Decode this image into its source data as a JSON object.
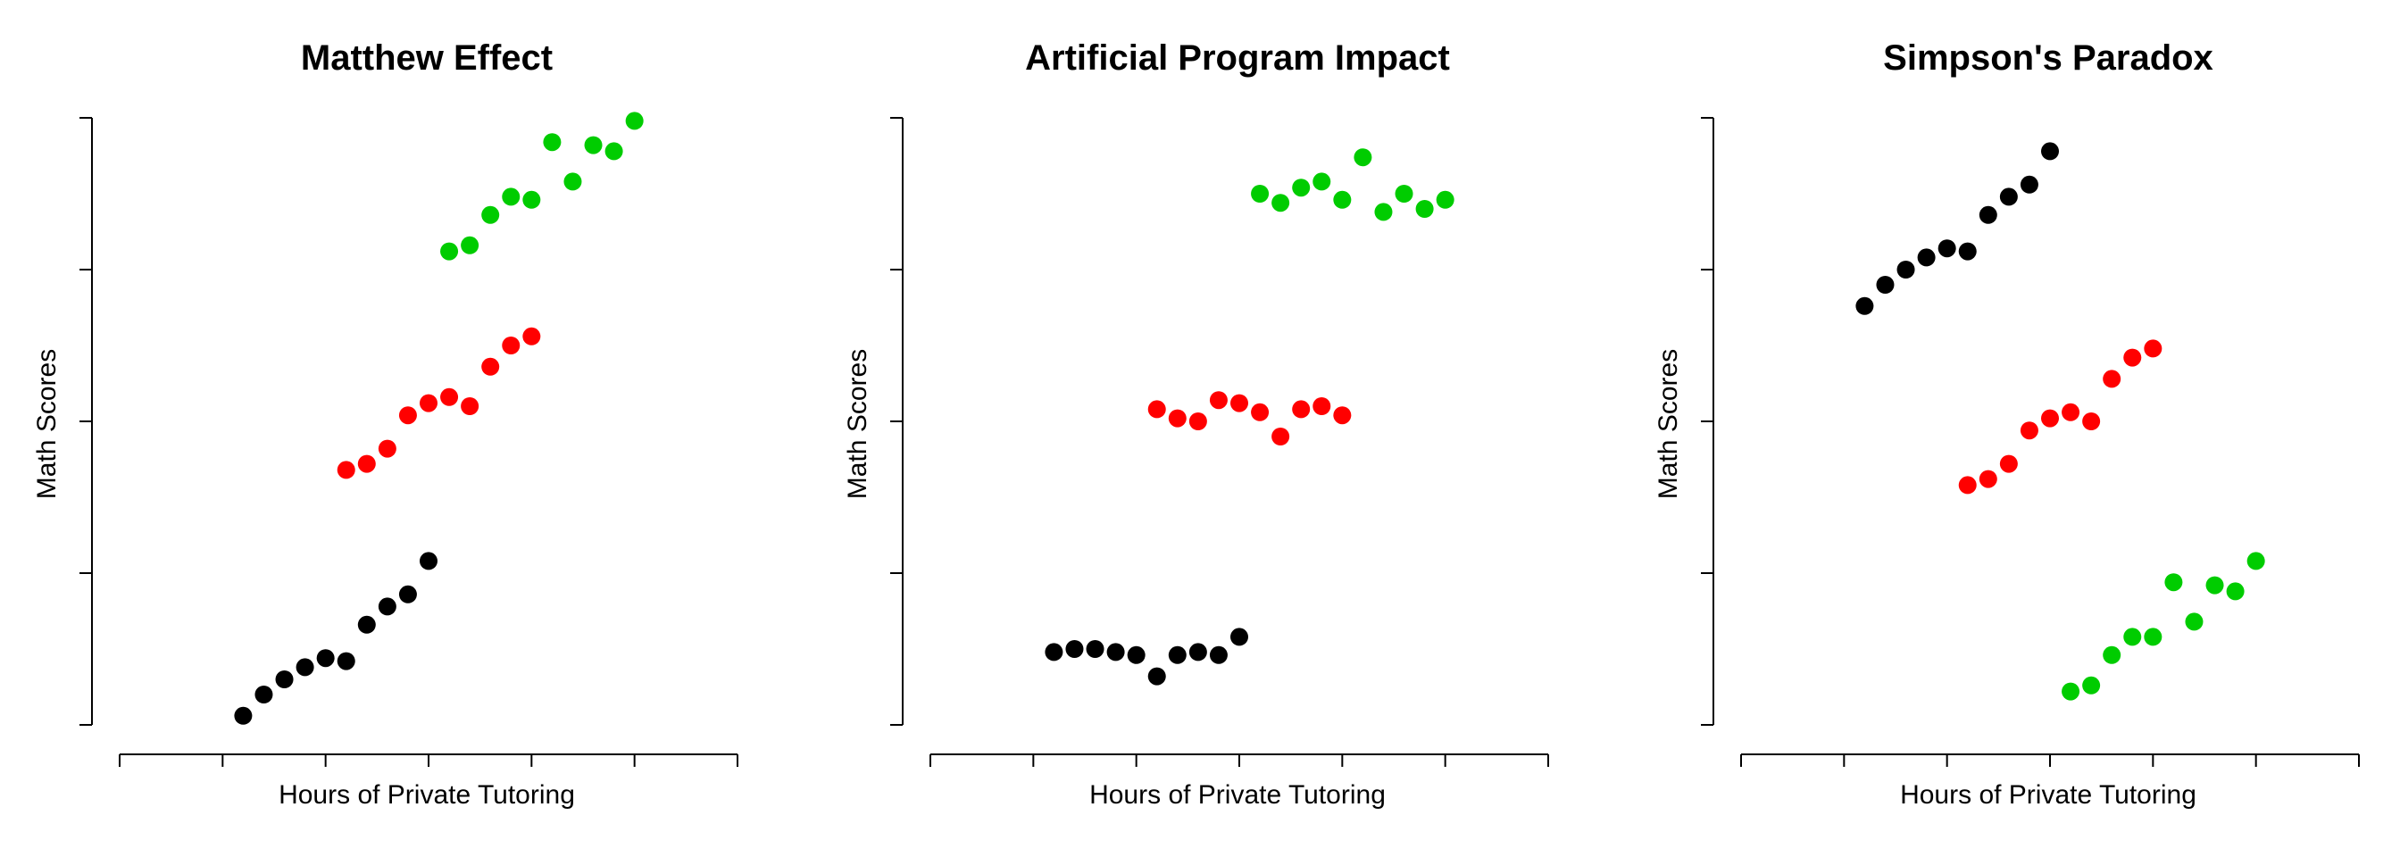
{
  "chart_data": [
    {
      "type": "scatter",
      "title": "Matthew Effect",
      "xlabel": "Hours of Private Tutoring",
      "ylabel": "Math Scores",
      "xlim": [
        0,
        6
      ],
      "ylim": [
        0,
        2
      ],
      "xticks": [
        0,
        1,
        2,
        3,
        4,
        5,
        6
      ],
      "yticks": [
        0,
        0.5,
        1,
        1.5,
        2
      ],
      "tick_labels_shown": false,
      "grid": false,
      "series": [
        {
          "color": "#000000",
          "x": [
            1.2,
            1.4,
            1.6,
            1.8,
            2.0,
            2.2,
            2.4,
            2.6,
            2.8,
            3.0
          ],
          "y": [
            0.03,
            0.1,
            0.15,
            0.19,
            0.22,
            0.21,
            0.33,
            0.39,
            0.43,
            0.54
          ]
        },
        {
          "color": "#ff0000",
          "x": [
            2.2,
            2.4,
            2.6,
            2.8,
            3.0,
            3.2,
            3.4,
            3.6,
            3.8,
            4.0
          ],
          "y": [
            0.84,
            0.86,
            0.91,
            1.02,
            1.06,
            1.08,
            1.05,
            1.18,
            1.25,
            1.28
          ]
        },
        {
          "color": "#00cc00",
          "x": [
            3.2,
            3.4,
            3.6,
            3.8,
            4.0,
            4.2,
            4.4,
            4.6,
            4.8,
            5.0
          ],
          "y": [
            1.56,
            1.58,
            1.68,
            1.74,
            1.73,
            1.92,
            1.79,
            1.91,
            1.89,
            1.99
          ]
        }
      ]
    },
    {
      "type": "scatter",
      "title": "Artificial Program Impact",
      "xlabel": "Hours of Private Tutoring",
      "ylabel": "Math Scores",
      "xlim": [
        0,
        6
      ],
      "ylim": [
        0,
        2
      ],
      "xticks": [
        0,
        1,
        2,
        3,
        4,
        5,
        6
      ],
      "yticks": [
        0,
        0.5,
        1,
        1.5,
        2
      ],
      "tick_labels_shown": false,
      "grid": false,
      "series": [
        {
          "color": "#000000",
          "x": [
            1.2,
            1.4,
            1.6,
            1.8,
            2.0,
            2.2,
            2.4,
            2.6,
            2.8,
            3.0
          ],
          "y": [
            0.24,
            0.25,
            0.25,
            0.24,
            0.23,
            0.16,
            0.23,
            0.24,
            0.23,
            0.29
          ]
        },
        {
          "color": "#ff0000",
          "x": [
            2.2,
            2.4,
            2.6,
            2.8,
            3.0,
            3.2,
            3.4,
            3.6,
            3.8,
            4.0
          ],
          "y": [
            1.04,
            1.01,
            1.0,
            1.07,
            1.06,
            1.03,
            0.95,
            1.04,
            1.05,
            1.02
          ]
        },
        {
          "color": "#00cc00",
          "x": [
            3.2,
            3.4,
            3.6,
            3.8,
            4.0,
            4.2,
            4.4,
            4.6,
            4.8,
            5.0
          ],
          "y": [
            1.75,
            1.72,
            1.77,
            1.79,
            1.73,
            1.87,
            1.69,
            1.75,
            1.7,
            1.73
          ]
        }
      ]
    },
    {
      "type": "scatter",
      "title": "Simpson's Paradox",
      "xlabel": "Hours of Private Tutoring",
      "ylabel": "Math Scores",
      "xlim": [
        0,
        6
      ],
      "ylim": [
        0,
        2
      ],
      "xticks": [
        0,
        1,
        2,
        3,
        4,
        5,
        6
      ],
      "yticks": [
        0,
        0.5,
        1,
        1.5,
        2
      ],
      "tick_labels_shown": false,
      "grid": false,
      "series": [
        {
          "color": "#000000",
          "x": [
            1.2,
            1.4,
            1.6,
            1.8,
            2.0,
            2.2,
            2.4,
            2.6,
            2.8,
            3.0
          ],
          "y": [
            1.38,
            1.45,
            1.5,
            1.54,
            1.57,
            1.56,
            1.68,
            1.74,
            1.78,
            1.89
          ]
        },
        {
          "color": "#ff0000",
          "x": [
            2.2,
            2.4,
            2.6,
            2.8,
            3.0,
            3.2,
            3.4,
            3.6,
            3.8,
            4.0
          ],
          "y": [
            0.79,
            0.81,
            0.86,
            0.97,
            1.01,
            1.03,
            1.0,
            1.14,
            1.21,
            1.24
          ]
        },
        {
          "color": "#00cc00",
          "x": [
            3.2,
            3.4,
            3.6,
            3.8,
            4.0,
            4.2,
            4.4,
            4.6,
            4.8,
            5.0
          ],
          "y": [
            0.11,
            0.13,
            0.23,
            0.29,
            0.29,
            0.47,
            0.34,
            0.46,
            0.44,
            0.54
          ]
        }
      ]
    }
  ]
}
